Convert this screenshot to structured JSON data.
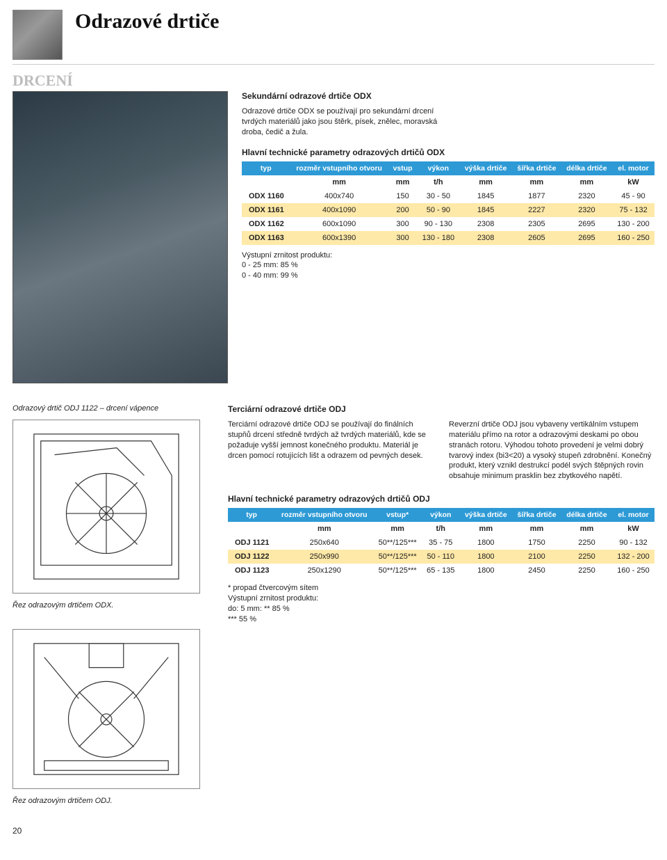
{
  "page_title": "Odrazové drtiče",
  "section": "DRCENÍ",
  "odx": {
    "heading": "Sekundární odrazové drtiče ODX",
    "paragraph": "Odrazové drtiče ODX se používají pro sekundární drcení tvrdých materiálů jako jsou štěrk, písek, znělec, moravská droba, čedič a žula.",
    "table_title": "Hlavní technické parametry odrazových drtičů ODX",
    "columns": [
      "typ",
      "rozměr vstupního otvoru",
      "vstup",
      "výkon",
      "výška drtiče",
      "šířka drtiče",
      "délka drtiče",
      "el. motor"
    ],
    "units": [
      "",
      "mm",
      "mm",
      "t/h",
      "mm",
      "mm",
      "mm",
      "kW"
    ],
    "rows": [
      [
        "ODX 1160",
        "400x740",
        "150",
        "30 - 50",
        "1845",
        "1877",
        "2320",
        "45 - 90"
      ],
      [
        "ODX 1161",
        "400x1090",
        "200",
        "50 - 90",
        "1845",
        "2227",
        "2320",
        "75 - 132"
      ],
      [
        "ODX 1162",
        "600x1090",
        "300",
        "90 - 130",
        "2308",
        "2305",
        "2695",
        "130 - 200"
      ],
      [
        "ODX 1163",
        "600x1390",
        "300",
        "130 - 180",
        "2308",
        "2605",
        "2695",
        "160 - 250"
      ]
    ],
    "notes": "Výstupní zrnitost produktu:\n0 - 25 mm: 85 %\n0 - 40 mm: 99 %"
  },
  "odj": {
    "caption_top": "Odrazový drtič ODJ 1122 – drcení vápence",
    "heading": "Terciární odrazové drtiče ODJ",
    "para_left": "Terciární odrazové drtiče ODJ se používají do finálních stupňů drcení středně tvrdých až tvrdých materiálů, kde se požaduje vyšší jemnost konečného produktu. Materiál je drcen pomocí rotujících lišt a odrazem od pevných desek.",
    "para_right": "Reverzní drtiče ODJ jsou vybaveny vertikálním vstupem materiálu přímo na rotor a odrazovými deskami po obou stranách rotoru. Výhodou tohoto provedení je velmi dobrý tvarový index (bi3<20) a vysoký stupeň zdrobnění. Konečný produkt, který vznikl destrukcí podél svých štěpných rovin obsahuje minimum prasklin bez zbytkového napětí.",
    "table_title": "Hlavní technické parametry odrazových drtičů ODJ",
    "columns": [
      "typ",
      "rozměr vstupního otvoru",
      "vstup*",
      "výkon",
      "výška drtiče",
      "šířka drtiče",
      "délka drtiče",
      "el. motor"
    ],
    "units": [
      "",
      "mm",
      "mm",
      "t/h",
      "mm",
      "mm",
      "mm",
      "kW"
    ],
    "rows": [
      [
        "ODJ 1121",
        "250x640",
        "50**/125***",
        "35 - 75",
        "1800",
        "1750",
        "2250",
        "90 - 132"
      ],
      [
        "ODJ 1122",
        "250x990",
        "50**/125***",
        "50 - 110",
        "1800",
        "2100",
        "2250",
        "132 - 200"
      ],
      [
        "ODJ 1123",
        "250x1290",
        "50**/125***",
        "65 - 135",
        "1800",
        "2450",
        "2250",
        "160 - 250"
      ]
    ],
    "notes": "* propad čtvercovým sítem\nVýstupní zrnitost produktu:\ndo: 5 mm: ** 85 %\n        *** 55 %",
    "caption_left_1": "Řez odrazovým drtičem ODX.",
    "caption_left_2": "Řez odrazovým drtičem ODJ."
  },
  "page_number": "20",
  "colors": {
    "header_bg": "#2d9ad6",
    "row_alt": "#ffe9a8",
    "section_grey": "#bdbdbd"
  }
}
